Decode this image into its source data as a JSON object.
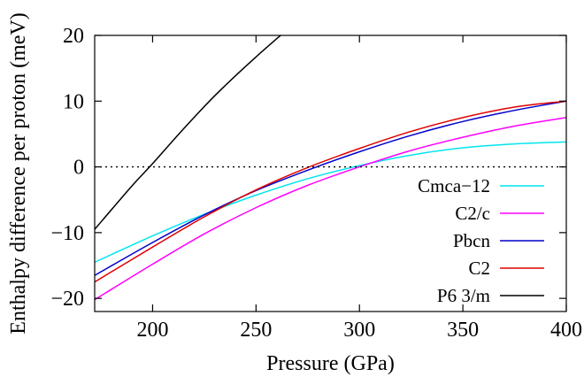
{
  "chart_data": {
    "type": "line",
    "title": "",
    "xlabel": "Pressure (GPa)",
    "ylabel": "Enthalpy difference per proton (meV)",
    "xlim": [
      172,
      400
    ],
    "ylim": [
      -22,
      20
    ],
    "xticks": [
      200,
      250,
      300,
      350,
      400
    ],
    "yticks": [
      -20,
      -10,
      0,
      10,
      20
    ],
    "grid": false,
    "legend_position": "bottom-right",
    "reference_line": {
      "y": 0,
      "style": "dotted"
    },
    "series": [
      {
        "name": "Cmca−12",
        "color": "#00e5ee",
        "x": [
          172,
          200,
          225,
          250,
          275,
          300,
          325,
          350,
          375,
          400
        ],
        "y": [
          -14.5,
          -10.5,
          -7.2,
          -4.3,
          -1.8,
          0.2,
          1.8,
          2.9,
          3.5,
          3.8
        ]
      },
      {
        "name": "C2/c",
        "color": "#ff00ff",
        "x": [
          172,
          200,
          225,
          250,
          275,
          300,
          325,
          350,
          375,
          400
        ],
        "y": [
          -20.2,
          -14.8,
          -10.2,
          -6.2,
          -2.8,
          0.0,
          2.5,
          4.5,
          6.2,
          7.5
        ]
      },
      {
        "name": "Pbcn",
        "color": "#0000cc",
        "x": [
          172,
          200,
          225,
          250,
          275,
          300,
          325,
          350,
          375,
          400
        ],
        "y": [
          -16.5,
          -11.5,
          -7.3,
          -3.6,
          -0.5,
          2.3,
          4.8,
          6.9,
          8.6,
          10.0
        ]
      },
      {
        "name": "C2",
        "color": "#e00000",
        "x": [
          172,
          200,
          225,
          250,
          275,
          300,
          325,
          350,
          375,
          400
        ],
        "y": [
          -17.5,
          -12.2,
          -7.6,
          -3.5,
          -0.1,
          2.8,
          5.4,
          7.5,
          9.1,
          10.0
        ]
      },
      {
        "name": "P6 3/m",
        "color": "#000000",
        "x": [
          172,
          190,
          200,
          215,
          230,
          245,
          260,
          265
        ],
        "y": [
          -9.5,
          -2.9,
          0.5,
          5.8,
          10.8,
          15.3,
          19.5,
          20.7
        ]
      }
    ]
  }
}
